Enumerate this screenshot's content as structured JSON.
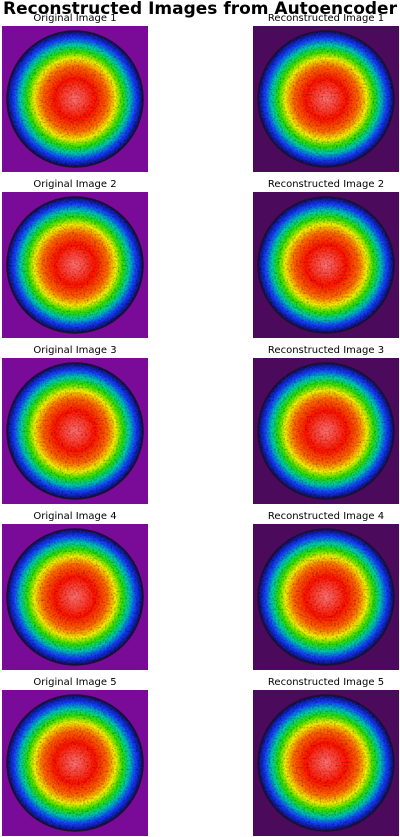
{
  "title": "Reconstructed Images from Autoencoder",
  "rows": [
    {
      "original": "Original Image 1",
      "reconstructed": "Reconstructed Image 1"
    },
    {
      "original": "Original Image 2",
      "reconstructed": "Reconstructed Image 2"
    },
    {
      "original": "Original Image 3",
      "reconstructed": "Reconstructed Image 3"
    },
    {
      "original": "Original Image 4",
      "reconstructed": "Reconstructed Image 4"
    },
    {
      "original": "Original Image 5",
      "reconstructed": "Reconstructed Image 5"
    }
  ]
}
